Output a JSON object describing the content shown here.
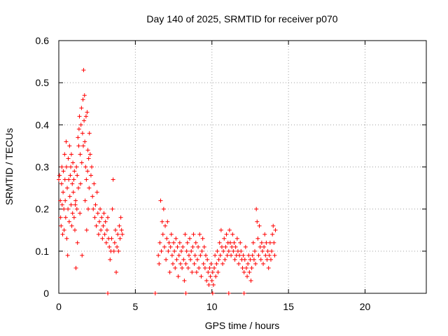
{
  "chart_data": {
    "type": "scatter",
    "title": "Day 140 of 2025, SRMTID for receiver p070",
    "xlabel": "GPS time / hours",
    "ylabel": "SRMTID / TECUs",
    "xlim": [
      0,
      24
    ],
    "ylim": [
      0,
      0.6
    ],
    "xticks": [
      0,
      5,
      10,
      15,
      20
    ],
    "xtick_labels": [
      "0",
      "5",
      "10",
      "15",
      "20"
    ],
    "yticks": [
      0,
      0.1,
      0.2,
      0.3,
      0.4,
      0.5,
      0.6
    ],
    "ytick_labels": [
      "0",
      "0.1",
      "0.2",
      "0.3",
      "0.4",
      "0.5",
      "0.6"
    ],
    "grid": true,
    "marker": "+",
    "color": "#ff0000",
    "series": [
      {
        "name": "SRMTID",
        "points": [
          [
            0.0,
            0.27
          ],
          [
            0.05,
            0.28
          ],
          [
            0.1,
            0.22
          ],
          [
            0.12,
            0.18
          ],
          [
            0.15,
            0.16
          ],
          [
            0.18,
            0.26
          ],
          [
            0.2,
            0.3
          ],
          [
            0.22,
            0.21
          ],
          [
            0.25,
            0.14
          ],
          [
            0.28,
            0.24
          ],
          [
            0.3,
            0.29
          ],
          [
            0.33,
            0.2
          ],
          [
            0.35,
            0.15
          ],
          [
            0.38,
            0.33
          ],
          [
            0.4,
            0.27
          ],
          [
            0.42,
            0.22
          ],
          [
            0.45,
            0.18
          ],
          [
            0.48,
            0.36
          ],
          [
            0.5,
            0.3
          ],
          [
            0.52,
            0.13
          ],
          [
            0.55,
            0.25
          ],
          [
            0.58,
            0.09
          ],
          [
            0.6,
            0.2
          ],
          [
            0.62,
            0.32
          ],
          [
            0.65,
            0.27
          ],
          [
            0.68,
            0.17
          ],
          [
            0.7,
            0.35
          ],
          [
            0.72,
            0.23
          ],
          [
            0.75,
            0.28
          ],
          [
            0.78,
            0.3
          ],
          [
            0.8,
            0.21
          ],
          [
            0.82,
            0.33
          ],
          [
            0.85,
            0.16
          ],
          [
            0.88,
            0.26
          ],
          [
            0.9,
            0.19
          ],
          [
            0.92,
            0.31
          ],
          [
            0.95,
            0.24
          ],
          [
            0.98,
            0.27
          ],
          [
            1.0,
            0.18
          ],
          [
            1.02,
            0.29
          ],
          [
            1.05,
            0.15
          ],
          [
            1.08,
            0.21
          ],
          [
            1.1,
            0.22
          ],
          [
            1.12,
            0.06
          ],
          [
            1.15,
            0.3
          ],
          [
            1.18,
            0.2
          ],
          [
            1.2,
            0.28
          ],
          [
            1.22,
            0.12
          ],
          [
            1.25,
            0.37
          ],
          [
            1.28,
            0.25
          ],
          [
            1.3,
            0.35
          ],
          [
            1.32,
            0.39
          ],
          [
            1.35,
            0.42
          ],
          [
            1.38,
            0.19
          ],
          [
            1.4,
            0.33
          ],
          [
            1.42,
            0.26
          ],
          [
            1.45,
            0.4
          ],
          [
            1.48,
            0.44
          ],
          [
            1.5,
            0.31
          ],
          [
            1.52,
            0.09
          ],
          [
            1.55,
            0.38
          ],
          [
            1.58,
            0.46
          ],
          [
            1.6,
            0.35
          ],
          [
            1.62,
            0.53
          ],
          [
            1.65,
            0.41
          ],
          [
            1.68,
            0.47
          ],
          [
            1.7,
            0.36
          ],
          [
            1.72,
            0.22
          ],
          [
            1.75,
            0.3
          ],
          [
            1.78,
            0.42
          ],
          [
            1.8,
            0.27
          ],
          [
            1.82,
            0.15
          ],
          [
            1.85,
            0.43
          ],
          [
            1.88,
            0.29
          ],
          [
            1.9,
            0.34
          ],
          [
            1.92,
            0.2
          ],
          [
            1.95,
            0.32
          ],
          [
            1.98,
            0.25
          ],
          [
            2.0,
            0.38
          ],
          [
            2.05,
            0.33
          ],
          [
            2.1,
            0.28
          ],
          [
            2.15,
            0.3
          ],
          [
            2.2,
            0.23
          ],
          [
            2.25,
            0.2
          ],
          [
            2.3,
            0.26
          ],
          [
            2.35,
            0.18
          ],
          [
            2.4,
            0.21
          ],
          [
            2.45,
            0.16
          ],
          [
            2.5,
            0.24
          ],
          [
            2.55,
            0.19
          ],
          [
            2.6,
            0.14
          ],
          [
            2.65,
            0.17
          ],
          [
            2.7,
            0.2
          ],
          [
            2.75,
            0.15
          ],
          [
            2.8,
            0.18
          ],
          [
            2.85,
            0.13
          ],
          [
            2.9,
            0.16
          ],
          [
            2.95,
            0.19
          ],
          [
            3.0,
            0.14
          ],
          [
            3.05,
            0.17
          ],
          [
            3.1,
            0.12
          ],
          [
            3.15,
            0.15
          ],
          [
            3.2,
            0.18
          ],
          [
            3.25,
            0.13
          ],
          [
            3.3,
            0.11
          ],
          [
            3.35,
            0.08
          ],
          [
            3.4,
            0.1
          ],
          [
            3.45,
            0.13
          ],
          [
            3.5,
            0.2
          ],
          [
            3.55,
            0.27
          ],
          [
            3.6,
            0.1
          ],
          [
            3.65,
            0.12
          ],
          [
            3.7,
            0.15
          ],
          [
            3.75,
            0.05
          ],
          [
            3.8,
            0.11
          ],
          [
            3.85,
            0.14
          ],
          [
            3.9,
            0.1
          ],
          [
            3.95,
            0.16
          ],
          [
            4.0,
            0.13
          ],
          [
            4.05,
            0.18
          ],
          [
            4.1,
            0.15
          ],
          [
            4.15,
            0.14
          ],
          [
            6.5,
            0.09
          ],
          [
            6.55,
            0.07
          ],
          [
            6.6,
            0.12
          ],
          [
            6.65,
            0.22
          ],
          [
            6.7,
            0.1
          ],
          [
            6.75,
            0.17
          ],
          [
            6.8,
            0.14
          ],
          [
            6.85,
            0.2
          ],
          [
            6.9,
            0.11
          ],
          [
            6.95,
            0.16
          ],
          [
            7.0,
            0.08
          ],
          [
            7.05,
            0.13
          ],
          [
            7.1,
            0.17
          ],
          [
            7.15,
            0.1
          ],
          [
            7.2,
            0.12
          ],
          [
            7.25,
            0.05
          ],
          [
            7.3,
            0.11
          ],
          [
            7.35,
            0.14
          ],
          [
            7.4,
            0.09
          ],
          [
            7.45,
            0.07
          ],
          [
            7.5,
            0.12
          ],
          [
            7.55,
            0.1
          ],
          [
            7.6,
            0.06
          ],
          [
            7.65,
            0.13
          ],
          [
            7.7,
            0.08
          ],
          [
            7.75,
            0.11
          ],
          [
            7.8,
            0.04
          ],
          [
            7.85,
            0.09
          ],
          [
            7.9,
            0.12
          ],
          [
            7.95,
            0.07
          ],
          [
            8.0,
            0.1
          ],
          [
            8.05,
            0.06
          ],
          [
            8.1,
            0.11
          ],
          [
            8.15,
            0.08
          ],
          [
            8.2,
            0.03
          ],
          [
            8.25,
            0.14
          ],
          [
            8.3,
            0.07
          ],
          [
            8.35,
            0.1
          ],
          [
            8.4,
            0.12
          ],
          [
            8.45,
            0.06
          ],
          [
            8.5,
            0.09
          ],
          [
            8.55,
            0.13
          ],
          [
            8.6,
            0.08
          ],
          [
            8.65,
            0.1
          ],
          [
            8.7,
            0.05
          ],
          [
            8.75,
            0.11
          ],
          [
            8.8,
            0.14
          ],
          [
            8.85,
            0.07
          ],
          [
            8.9,
            0.09
          ],
          [
            8.95,
            0.12
          ],
          [
            9.0,
            0.05
          ],
          [
            9.05,
            0.08
          ],
          [
            9.1,
            0.11
          ],
          [
            9.15,
            0.06
          ],
          [
            9.2,
            0.14
          ],
          [
            9.25,
            0.09
          ],
          [
            9.3,
            0.04
          ],
          [
            9.35,
            0.1
          ],
          [
            9.4,
            0.13
          ],
          [
            9.45,
            0.07
          ],
          [
            9.5,
            0.11
          ],
          [
            9.55,
            0.06
          ],
          [
            9.6,
            0.09
          ],
          [
            9.65,
            0.03
          ],
          [
            9.7,
            0.08
          ],
          [
            9.75,
            0.05
          ],
          [
            9.8,
            0.02
          ],
          [
            9.85,
            0.06
          ],
          [
            9.9,
            0.04
          ],
          [
            9.95,
            0.07
          ],
          [
            10.0,
            0.03
          ],
          [
            10.05,
            0.05
          ],
          [
            10.1,
            0.02
          ],
          [
            10.15,
            0.06
          ],
          [
            10.2,
            0.09
          ],
          [
            10.25,
            0.04
          ],
          [
            10.3,
            0.07
          ],
          [
            10.35,
            0.1
          ],
          [
            10.4,
            0.05
          ],
          [
            10.45,
            0.08
          ],
          [
            10.5,
            0.12
          ],
          [
            10.55,
            0.09
          ],
          [
            10.6,
            0.15
          ],
          [
            10.65,
            0.11
          ],
          [
            10.7,
            0.07
          ],
          [
            10.75,
            0.1
          ],
          [
            10.8,
            0.13
          ],
          [
            10.85,
            0.08
          ],
          [
            10.9,
            0.11
          ],
          [
            10.95,
            0.14
          ],
          [
            11.0,
            0.09
          ],
          [
            11.05,
            0.12
          ],
          [
            11.1,
            0.1
          ],
          [
            11.15,
            0.15
          ],
          [
            11.2,
            0.12
          ],
          [
            11.25,
            0.09
          ],
          [
            11.3,
            0.11
          ],
          [
            11.35,
            0.14
          ],
          [
            11.4,
            0.1
          ],
          [
            11.45,
            0.12
          ],
          [
            11.5,
            0.08
          ],
          [
            11.55,
            0.11
          ],
          [
            11.6,
            0.09
          ],
          [
            11.65,
            0.13
          ],
          [
            11.7,
            0.1
          ],
          [
            11.75,
            0.07
          ],
          [
            11.8,
            0.09
          ],
          [
            11.85,
            0.12
          ],
          [
            11.9,
            0.1
          ],
          [
            11.95,
            0.08
          ],
          [
            12.0,
            0.06
          ],
          [
            12.05,
            0.09
          ],
          [
            12.1,
            0.05
          ],
          [
            12.15,
            0.08
          ],
          [
            12.2,
            0.11
          ],
          [
            12.25,
            0.06
          ],
          [
            12.3,
            0.04
          ],
          [
            12.35,
            0.07
          ],
          [
            12.4,
            0.09
          ],
          [
            12.45,
            0.05
          ],
          [
            12.5,
            0.08
          ],
          [
            12.55,
            0.03
          ],
          [
            12.6,
            0.06
          ],
          [
            12.65,
            0.09
          ],
          [
            12.7,
            0.12
          ],
          [
            12.75,
            0.08
          ],
          [
            12.8,
            0.1
          ],
          [
            12.85,
            0.07
          ],
          [
            12.9,
            0.2
          ],
          [
            12.95,
            0.17
          ],
          [
            13.0,
            0.13
          ],
          [
            13.05,
            0.09
          ],
          [
            13.1,
            0.16
          ],
          [
            13.15,
            0.11
          ],
          [
            13.2,
            0.08
          ],
          [
            13.25,
            0.12
          ],
          [
            13.3,
            0.1
          ],
          [
            13.35,
            0.07
          ],
          [
            13.4,
            0.11
          ],
          [
            13.45,
            0.14
          ],
          [
            13.5,
            0.09
          ],
          [
            13.55,
            0.12
          ],
          [
            13.6,
            0.08
          ],
          [
            13.65,
            0.1
          ],
          [
            13.7,
            0.06
          ],
          [
            13.75,
            0.09
          ],
          [
            13.8,
            0.12
          ],
          [
            13.85,
            0.08
          ],
          [
            13.9,
            0.1
          ],
          [
            13.95,
            0.14
          ],
          [
            14.0,
            0.16
          ],
          [
            14.05,
            0.12
          ],
          [
            14.1,
            0.09
          ],
          [
            14.15,
            0.15
          ],
          [
            3.2,
            0.0
          ],
          [
            6.3,
            0.0
          ],
          [
            8.3,
            0.0
          ],
          [
            10.05,
            0.0
          ],
          [
            11.1,
            0.0
          ],
          [
            12.1,
            0.0
          ]
        ]
      }
    ]
  }
}
